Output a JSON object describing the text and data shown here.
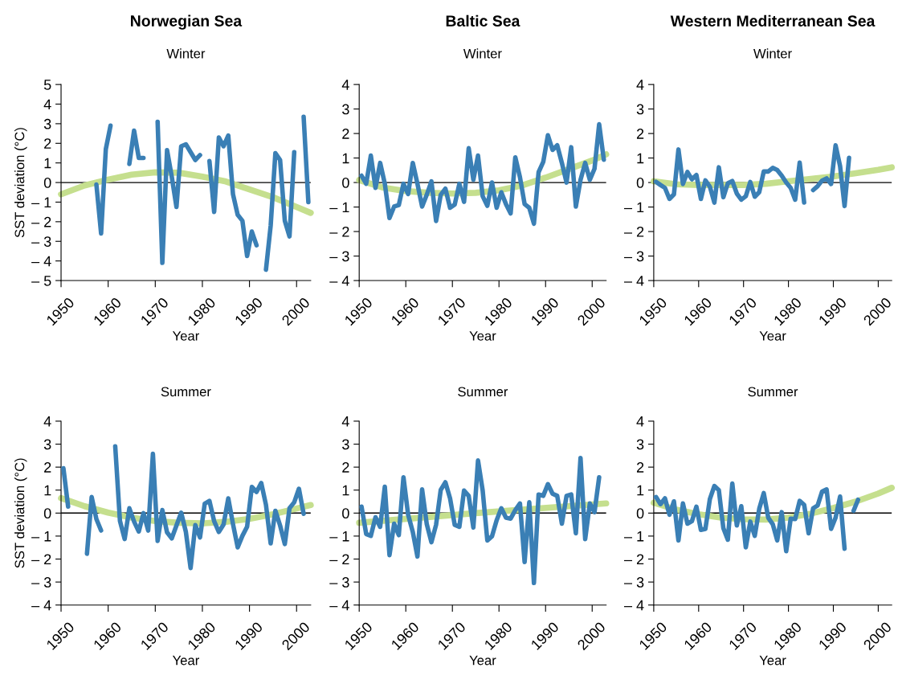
{
  "chart_data": [
    {
      "type": "line",
      "title": "Norwegian Sea",
      "subtitle": "Winter",
      "xlabel": "Year",
      "ylabel": "SST deviation (°C)",
      "xlim": [
        1950,
        2003
      ],
      "xticks": [
        1950,
        1960,
        1970,
        1980,
        1990,
        2000
      ],
      "ylim": [
        -5,
        5
      ],
      "yticks": [
        {
          "value": -5,
          "label": "– 5"
        },
        {
          "value": -4,
          "label": "– 4"
        },
        {
          "value": -3,
          "label": "– 3"
        },
        {
          "value": -2,
          "label": "– 2"
        },
        {
          "value": -1,
          "label": "– 1"
        },
        0,
        1,
        2,
        3,
        4,
        5
      ],
      "grid": false,
      "legend": false,
      "marker": "none",
      "line_style": "solid",
      "ref_lines": [
        {
          "axis": "y",
          "value": 0,
          "color": "#000000"
        }
      ],
      "series": [
        {
          "color": "#c5df8e",
          "x": [
            1950,
            1955,
            1960,
            1965,
            1970,
            1975,
            1980,
            1985,
            1990,
            1995,
            2000,
            2003
          ],
          "values": [
            -0.6,
            -0.15,
            0.15,
            0.4,
            0.52,
            0.5,
            0.3,
            0.05,
            -0.35,
            -0.75,
            -1.25,
            -1.55
          ]
        },
        {
          "color": "#3a7fb5",
          "x": [
            1957.5,
            1958.5,
            1959.5,
            1960.5,
            1962.5,
            1964.5,
            1965.5,
            1966.5,
            1967.5,
            1969,
            1970.5,
            1971.5,
            1972.5,
            1973.5,
            1974.5,
            1975.5,
            1976.5,
            1977.5,
            1978.5,
            1979.5,
            1980.5,
            1981.5,
            1982.5,
            1983.5,
            1984.5,
            1985.5,
            1986.5,
            1987.5,
            1988.5,
            1989.5,
            1990.5,
            1991.5,
            1992.5,
            1993.5,
            1994.5,
            1995.5,
            1996.5,
            1997.5,
            1998.5,
            1999.5,
            2000.5,
            2001.5,
            2002.5
          ],
          "values": [
            -0.1,
            -2.6,
            1.7,
            2.9,
            null,
            0.95,
            2.65,
            1.25,
            1.25,
            null,
            3.1,
            -4.1,
            1.65,
            0.3,
            -1.25,
            1.85,
            1.95,
            1.55,
            1.15,
            1.4,
            null,
            1.1,
            -1.5,
            2.3,
            1.85,
            2.4,
            -0.6,
            -1.65,
            -1.95,
            -3.75,
            -2.5,
            -3.2,
            null,
            -4.45,
            -2.2,
            1.5,
            1.15,
            -1.95,
            -2.75,
            1.55,
            null,
            3.35,
            -1.0
          ]
        }
      ]
    },
    {
      "type": "line",
      "title": "Baltic Sea",
      "subtitle": "Winter",
      "xlabel": "Year",
      "xlim": [
        1950,
        2003
      ],
      "xticks": [
        1950,
        1960,
        1970,
        1980,
        1990,
        2000
      ],
      "ylim": [
        -4,
        4
      ],
      "yticks": [
        {
          "value": -4,
          "label": "– 4"
        },
        {
          "value": -3,
          "label": "– 3"
        },
        {
          "value": -2,
          "label": "– 2"
        },
        {
          "value": -1,
          "label": "– 1"
        },
        0,
        1,
        2,
        3,
        4
      ],
      "grid": false,
      "legend": false,
      "marker": "none",
      "line_style": "solid",
      "ref_lines": [
        {
          "axis": "y",
          "value": 0,
          "color": "#000000"
        }
      ],
      "series": [
        {
          "color": "#c5df8e",
          "x": [
            1950,
            1955,
            1960,
            1965,
            1970,
            1975,
            1980,
            1985,
            1990,
            1995,
            2000,
            2003
          ],
          "values": [
            0.1,
            -0.2,
            -0.35,
            -0.42,
            -0.45,
            -0.42,
            -0.32,
            -0.12,
            0.2,
            0.55,
            0.9,
            1.15
          ]
        },
        {
          "color": "#3a7fb5",
          "x": [
            1950.5,
            1951.5,
            1952.5,
            1953.5,
            1954.5,
            1955.5,
            1956.5,
            1957.5,
            1958.5,
            1959.5,
            1960.5,
            1961.5,
            1962.5,
            1963.5,
            1964.5,
            1965.5,
            1966.5,
            1967.5,
            1968.5,
            1969.5,
            1970.5,
            1971.5,
            1972.5,
            1973.5,
            1974.5,
            1975.5,
            1976.5,
            1977.5,
            1978.5,
            1979.5,
            1980.5,
            1981.5,
            1982.5,
            1983.5,
            1984.5,
            1985.5,
            1986.5,
            1987.5,
            1988.5,
            1989.5,
            1990.5,
            1991.5,
            1992.5,
            1993.5,
            1994.5,
            1995.5,
            1996.5,
            1997.5,
            1998.5,
            1999.5,
            2000.5,
            2001.5,
            2002.5
          ],
          "values": [
            0.28,
            -0.05,
            1.1,
            -0.22,
            0.8,
            -0.05,
            -1.45,
            -0.98,
            -0.92,
            -0.05,
            -0.47,
            0.8,
            -0.05,
            -0.98,
            -0.5,
            0.05,
            -1.57,
            -0.5,
            -0.25,
            -1.03,
            -0.9,
            -0.05,
            -0.79,
            1.4,
            0.11,
            1.1,
            -0.56,
            -0.95,
            0,
            -1.03,
            -0.4,
            -0.88,
            -1.26,
            1.03,
            0.22,
            -0.88,
            -1.03,
            -1.68,
            0.42,
            0.84,
            1.93,
            1.33,
            1.52,
            0.8,
            0,
            1.44,
            -0.98,
            0.11,
            0.8,
            0.11,
            0.56,
            2.38,
            0.93
          ]
        }
      ]
    },
    {
      "type": "line",
      "title": "Western Mediterranean Sea",
      "subtitle": "Winter",
      "xlabel": "Year",
      "xlim": [
        1950,
        2003
      ],
      "xticks": [
        1950,
        1960,
        1970,
        1980,
        1990,
        2000
      ],
      "ylim": [
        -4,
        4
      ],
      "yticks": [
        {
          "value": -4,
          "label": "– 4"
        },
        {
          "value": -3,
          "label": "– 3"
        },
        {
          "value": -2,
          "label": "– 2"
        },
        {
          "value": -1,
          "label": "– 1"
        },
        0,
        1,
        2,
        3,
        4
      ],
      "grid": false,
      "legend": false,
      "marker": "none",
      "line_style": "solid",
      "ref_lines": [
        {
          "axis": "y",
          "value": 0,
          "color": "#000000"
        }
      ],
      "series": [
        {
          "color": "#c5df8e",
          "x": [
            1950,
            1955,
            1960,
            1970,
            1975,
            1980,
            1985,
            1990,
            1995,
            2000,
            2003
          ],
          "values": [
            0.05,
            -0.07,
            -0.1,
            -0.1,
            -0.05,
            0.05,
            0.15,
            0.25,
            0.38,
            0.52,
            0.62
          ]
        },
        {
          "color": "#3a7fb5",
          "x": [
            1950.5,
            1951.5,
            1952.5,
            1953.5,
            1954.5,
            1955.5,
            1956.5,
            1957.5,
            1958.5,
            1959.5,
            1960.5,
            1961.5,
            1962.5,
            1963.5,
            1964.5,
            1965.5,
            1966.5,
            1967.5,
            1968.5,
            1969.5,
            1970.5,
            1971.5,
            1972.5,
            1973.5,
            1974.5,
            1975.5,
            1976.5,
            1977.5,
            1978.5,
            1979.5,
            1980.5,
            1981.5,
            1982.5,
            1983.5,
            1984.5,
            1985.5,
            1986.5,
            1987.5,
            1988.5,
            1989.5,
            1990.5,
            1991.5,
            1992.5,
            1993.5
          ],
          "values": [
            0.03,
            -0.1,
            -0.22,
            -0.67,
            -0.48,
            1.35,
            -0.06,
            0.43,
            0.13,
            0.31,
            -0.67,
            0.09,
            -0.17,
            -0.82,
            0.62,
            -0.6,
            -0.03,
            0.06,
            -0.45,
            -0.7,
            -0.56,
            0.02,
            -0.58,
            -0.39,
            0.45,
            0.45,
            0.6,
            0.51,
            0.28,
            0,
            -0.22,
            -0.7,
            0.81,
            -0.82,
            null,
            -0.31,
            -0.15,
            0.08,
            0.17,
            -0.06,
            1.52,
            0.67,
            -0.96,
            1.01
          ]
        }
      ]
    },
    {
      "type": "line",
      "subtitle": "Summer",
      "xlabel": "Year",
      "ylabel": "SST deviation (°C)",
      "xlim": [
        1950,
        2003
      ],
      "xticks": [
        1950,
        1960,
        1970,
        1980,
        1990,
        2000
      ],
      "ylim": [
        -4,
        4
      ],
      "yticks": [
        {
          "value": -4,
          "label": "– 4"
        },
        {
          "value": -3,
          "label": "– 3"
        },
        {
          "value": -2,
          "label": "– 2"
        },
        {
          "value": -1,
          "label": "– 1"
        },
        0,
        1,
        2,
        3,
        4
      ],
      "grid": false,
      "legend": false,
      "marker": "none",
      "line_style": "solid",
      "ref_lines": [
        {
          "axis": "y",
          "value": 0,
          "color": "#000000"
        }
      ],
      "series": [
        {
          "color": "#c5df8e",
          "x": [
            1950,
            1955,
            1960,
            1965,
            1970,
            1975,
            1980,
            1985,
            1990,
            1995,
            2000,
            2003
          ],
          "values": [
            0.65,
            0.3,
            0.02,
            -0.2,
            -0.35,
            -0.42,
            -0.45,
            -0.38,
            -0.25,
            -0.05,
            0.2,
            0.35
          ]
        },
        {
          "color": "#3a7fb5",
          "x": [
            1950.5,
            1951.5,
            1953.5,
            1955.5,
            1956.5,
            1957.5,
            1958.5,
            1960,
            1961.5,
            1962.5,
            1963.5,
            1964.5,
            1965.5,
            1966.5,
            1967.5,
            1968.5,
            1969.5,
            1970.5,
            1971.5,
            1972.5,
            1973.5,
            1974.5,
            1975.5,
            1976.5,
            1977.5,
            1978.5,
            1979.5,
            1980.5,
            1981.5,
            1982.5,
            1983.5,
            1984.5,
            1985.5,
            1986.5,
            1987.5,
            1988.5,
            1989.5,
            1990.5,
            1991.5,
            1992.5,
            1993.5,
            1994.5,
            1995.5,
            1996.5,
            1997.5,
            1998.5,
            1999.5,
            2000.5,
            2001.5
          ],
          "values": [
            1.95,
            0.28,
            null,
            -1.77,
            0.7,
            -0.26,
            -0.76,
            null,
            2.9,
            -0.34,
            -1.13,
            0.21,
            -0.37,
            -0.8,
            0,
            -0.76,
            2.58,
            -1.21,
            0.13,
            -0.84,
            -1.1,
            -0.54,
            0.02,
            -0.82,
            -2.39,
            -0.52,
            -1.06,
            0.41,
            0.53,
            -0.35,
            -0.82,
            -0.5,
            0.64,
            -0.48,
            -1.49,
            -0.99,
            -0.59,
            1.14,
            0.92,
            1.31,
            0.36,
            -1.32,
            0.1,
            -0.54,
            -1.35,
            0.21,
            0.47,
            1.06,
            -0.03
          ]
        }
      ]
    },
    {
      "type": "line",
      "subtitle": "Summer",
      "xlabel": "Year",
      "xlim": [
        1950,
        2003
      ],
      "xticks": [
        1950,
        1960,
        1970,
        1980,
        1990,
        2000
      ],
      "ylim": [
        -4,
        4
      ],
      "yticks": [
        {
          "value": -4,
          "label": "– 4"
        },
        {
          "value": -3,
          "label": "– 3"
        },
        {
          "value": -2,
          "label": "– 2"
        },
        {
          "value": -1,
          "label": "– 1"
        },
        0,
        1,
        2,
        3,
        4
      ],
      "grid": false,
      "legend": false,
      "marker": "none",
      "line_style": "solid",
      "ref_lines": [
        {
          "axis": "y",
          "value": 0,
          "color": "#000000"
        }
      ],
      "series": [
        {
          "color": "#c5df8e",
          "x": [
            1950,
            1975,
            2003
          ],
          "values": [
            -0.42,
            0.0,
            0.42
          ]
        },
        {
          "color": "#3a7fb5",
          "x": [
            1950.5,
            1951.5,
            1952.5,
            1953.5,
            1954.5,
            1955.5,
            1956.5,
            1957.5,
            1958.5,
            1959.5,
            1960.5,
            1961.5,
            1962.5,
            1963.5,
            1964.5,
            1965.5,
            1966.5,
            1967.5,
            1968.5,
            1969.5,
            1970.5,
            1971.5,
            1972.5,
            1973.5,
            1974.5,
            1975.5,
            1976.5,
            1977.5,
            1978.5,
            1979.5,
            1980.5,
            1981.5,
            1982.5,
            1983.5,
            1984.5,
            1985.5,
            1986.5,
            1987.5,
            1988.5,
            1989.5,
            1990.5,
            1991.5,
            1992.5,
            1993.5,
            1994.5,
            1995.5,
            1996.5,
            1997.5,
            1998.5,
            1999.5,
            2000.5,
            2001.5
          ],
          "values": [
            0.28,
            -0.91,
            -0.99,
            -0.18,
            -0.6,
            1.15,
            -1.83,
            -0.46,
            -0.96,
            1.56,
            -0.07,
            -0.82,
            -1.89,
            1.03,
            -0.48,
            -1.27,
            -0.51,
            1.01,
            1.34,
            0.64,
            -0.51,
            -0.6,
            0.98,
            0.75,
            -0.63,
            2.29,
            0.98,
            -1.19,
            -1.01,
            -0.31,
            0.21,
            -0.2,
            -0.24,
            0.13,
            0.42,
            -2.13,
            0.47,
            -3.04,
            0.81,
            0.75,
            1.26,
            0.84,
            0.75,
            -0.46,
            0.75,
            0.81,
            -0.88,
            2.4,
            -1.13,
            0.42,
            0.04,
            1.56
          ]
        }
      ]
    },
    {
      "type": "line",
      "subtitle": "Summer",
      "xlabel": "Year",
      "xlim": [
        1950,
        2003
      ],
      "xticks": [
        1950,
        1960,
        1970,
        1980,
        1990,
        2000
      ],
      "ylim": [
        -4,
        4
      ],
      "yticks": [
        {
          "value": -4,
          "label": "– 4"
        },
        {
          "value": -3,
          "label": "– 3"
        },
        {
          "value": -2,
          "label": "– 2"
        },
        {
          "value": -1,
          "label": "– 1"
        },
        0,
        1,
        2,
        3,
        4
      ],
      "grid": false,
      "legend": false,
      "marker": "none",
      "line_style": "solid",
      "ref_lines": [
        {
          "axis": "y",
          "value": 0,
          "color": "#000000"
        }
      ],
      "series": [
        {
          "color": "#c5df8e",
          "x": [
            1950,
            1955,
            1960,
            1965,
            1970,
            1975,
            1980,
            1985,
            1990,
            1995,
            2000,
            2003
          ],
          "values": [
            0.45,
            0.15,
            -0.05,
            -0.2,
            -0.27,
            -0.28,
            -0.2,
            -0.02,
            0.22,
            0.5,
            0.85,
            1.1
          ]
        },
        {
          "color": "#3a7fb5",
          "x": [
            1950.5,
            1951.5,
            1952.5,
            1953.5,
            1954.5,
            1955.5,
            1956.5,
            1957.5,
            1958.5,
            1959.5,
            1960.5,
            1961.5,
            1962.5,
            1963.5,
            1964.5,
            1965.5,
            1966.5,
            1967.5,
            1968.5,
            1969.5,
            1970.5,
            1971.5,
            1972.5,
            1973.5,
            1974.5,
            1975.5,
            1976.5,
            1977.5,
            1978.5,
            1979.5,
            1980.5,
            1981.5,
            1982.5,
            1983.5,
            1984.5,
            1985.5,
            1986.5,
            1987.5,
            1988.5,
            1989.5,
            1990.5,
            1991.5,
            1992.5,
            1993.5,
            1994.5,
            1995.5
          ],
          "values": [
            0.7,
            0.39,
            0.64,
            -0.07,
            0.51,
            -1.19,
            0.42,
            -0.46,
            -0.35,
            0.28,
            -0.73,
            -0.69,
            0.61,
            1.18,
            1.0,
            -0.65,
            -1.16,
            1.29,
            -0.54,
            0.3,
            -1.49,
            -0.37,
            -0.99,
            0.19,
            0.87,
            -0.2,
            -0.48,
            -1.19,
            0.04,
            -1.66,
            -0.24,
            -0.26,
            0.53,
            0.36,
            -0.88,
            0.21,
            0.33,
            0.94,
            1.03,
            -0.69,
            -0.2,
            0.72,
            -1.55,
            null,
            0.1,
            0.58
          ]
        }
      ]
    }
  ]
}
